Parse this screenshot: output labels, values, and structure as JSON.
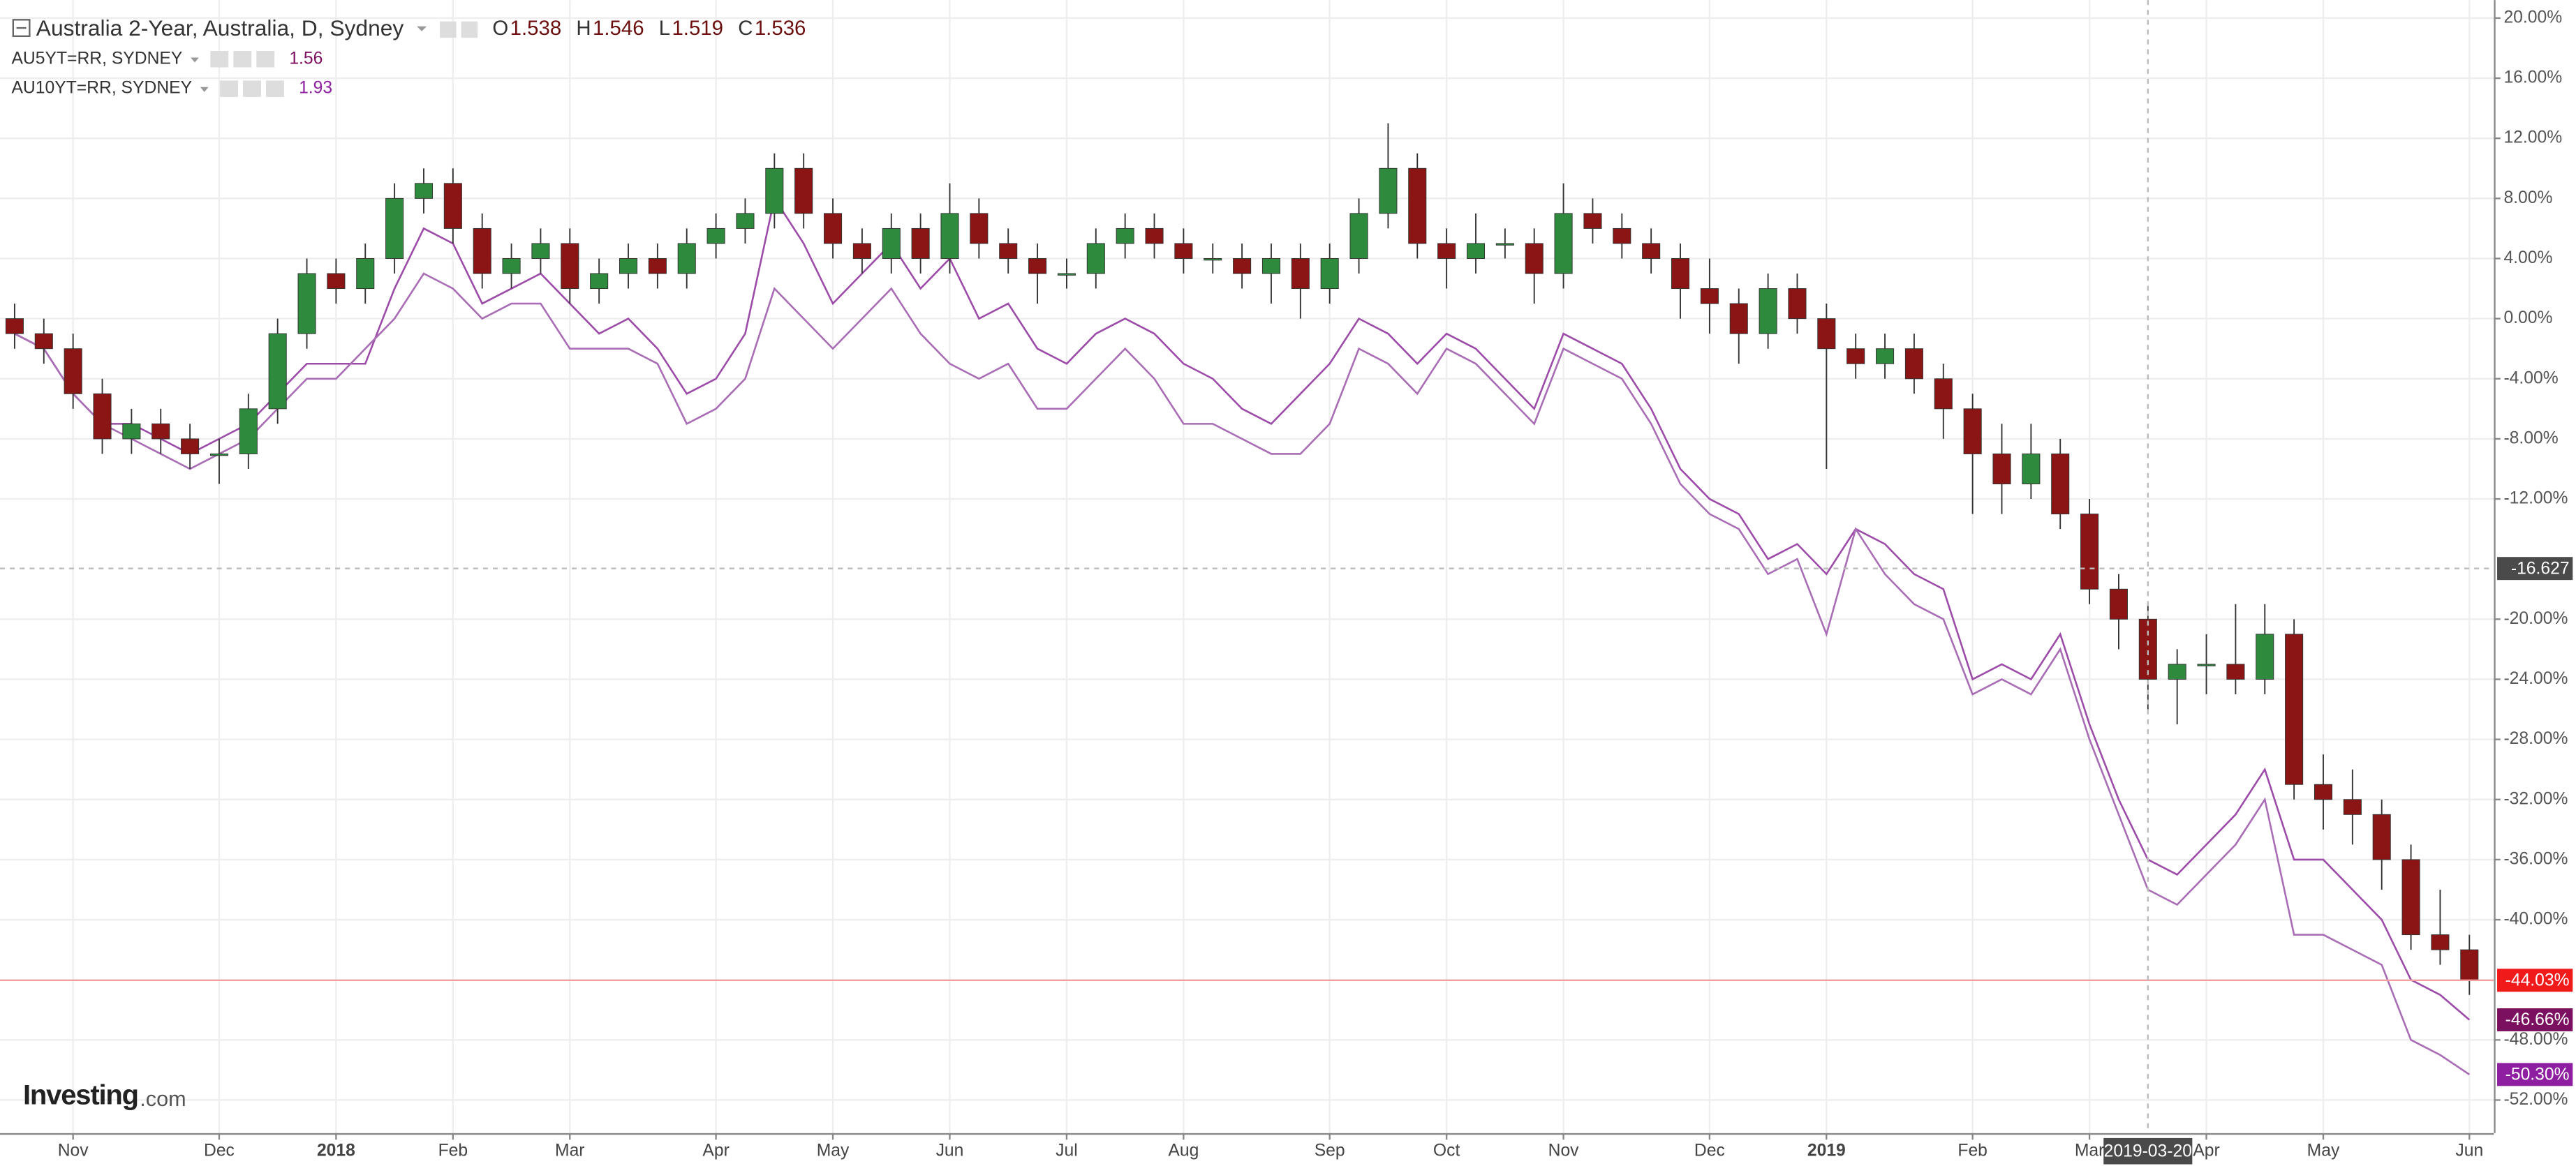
{
  "chart_data": {
    "type": "candlestick",
    "title": "Australia 2-Year, Australia, D, Sydney",
    "ohlc": {
      "labels": [
        "O",
        "H",
        "L",
        "C"
      ],
      "values": [
        1.538,
        1.546,
        1.519,
        1.536
      ]
    },
    "categories": [
      null,
      null,
      "Nov",
      null,
      null,
      null,
      null,
      "Dec",
      null,
      null,
      null,
      "2018",
      null,
      null,
      null,
      "Feb",
      null,
      null,
      null,
      "Mar",
      null,
      null,
      null,
      null,
      "Apr",
      null,
      null,
      null,
      "May",
      null,
      null,
      null,
      "Jun",
      null,
      null,
      null,
      "Jul",
      null,
      null,
      null,
      "Aug",
      null,
      null,
      null,
      null,
      "Sep",
      null,
      null,
      null,
      "Oct",
      null,
      null,
      null,
      "Nov",
      null,
      null,
      null,
      null,
      "Dec",
      null,
      null,
      null,
      "2019",
      null,
      null,
      null,
      null,
      "Feb",
      null,
      null,
      null,
      "Mar",
      null,
      "2019-03-20",
      null,
      "Apr",
      null,
      null,
      null,
      "May",
      null,
      null,
      null,
      null,
      "Jun"
    ],
    "candles": {
      "color_up": "#2e8b3e",
      "color_down": "#8b1515",
      "open": [
        0,
        -1,
        -2,
        -5,
        -8,
        -7,
        -8,
        -9,
        -9,
        -6,
        -1,
        3,
        2,
        4,
        8,
        9,
        6,
        3,
        4,
        5,
        2,
        3,
        4,
        3,
        5,
        6,
        7,
        10,
        7,
        5,
        4,
        6,
        4,
        7,
        5,
        4,
        3,
        3,
        5,
        6,
        5,
        4,
        4,
        3,
        4,
        2,
        4,
        7,
        10,
        5,
        4,
        5,
        5,
        3,
        7,
        6,
        5,
        4,
        2,
        1,
        -1,
        2,
        0,
        -2,
        -3,
        -2,
        -4,
        -6,
        -9,
        -11,
        -9,
        -13,
        -18,
        -20,
        -24,
        -23,
        -23,
        -24,
        -21,
        -31,
        -32,
        -33,
        -36,
        -41,
        -42
      ],
      "high": [
        1,
        0,
        -1,
        -4,
        -6,
        -6,
        -7,
        -8,
        -5,
        0,
        4,
        4,
        5,
        9,
        10,
        10,
        7,
        5,
        6,
        6,
        4,
        5,
        5,
        6,
        7,
        8,
        11,
        11,
        8,
        6,
        7,
        7,
        9,
        8,
        6,
        5,
        4,
        6,
        7,
        7,
        6,
        5,
        5,
        5,
        5,
        5,
        8,
        13,
        11,
        6,
        7,
        6,
        6,
        9,
        8,
        7,
        6,
        5,
        4,
        2,
        3,
        3,
        1,
        -1,
        -1,
        -1,
        -3,
        -5,
        -7,
        -7,
        -8,
        -12,
        -17,
        -19,
        -22,
        -21,
        -19,
        -19,
        -20,
        -29,
        -30,
        -32,
        -35,
        -38,
        -41
      ],
      "low": [
        -2,
        -3,
        -6,
        -9,
        -9,
        -9,
        -10,
        -11,
        -10,
        -7,
        -2,
        1,
        1,
        3,
        7,
        5,
        2,
        2,
        3,
        1,
        1,
        2,
        2,
        2,
        4,
        5,
        6,
        6,
        4,
        3,
        3,
        3,
        3,
        4,
        3,
        1,
        2,
        2,
        4,
        4,
        3,
        3,
        2,
        1,
        0,
        1,
        3,
        6,
        4,
        2,
        3,
        4,
        1,
        2,
        5,
        4,
        3,
        0,
        -1,
        -3,
        -2,
        -1,
        -10,
        -4,
        -4,
        -5,
        -8,
        -13,
        -13,
        -12,
        -14,
        -19,
        -22,
        -26,
        -27,
        -25,
        -25,
        -25,
        -32,
        -34,
        -35,
        -38,
        -42,
        -43,
        -45
      ],
      "close": [
        -1,
        -2,
        -5,
        -8,
        -7,
        -8,
        -9,
        -9,
        -6,
        -1,
        3,
        2,
        4,
        8,
        9,
        6,
        3,
        4,
        5,
        2,
        3,
        4,
        3,
        5,
        6,
        7,
        10,
        7,
        5,
        4,
        6,
        4,
        7,
        5,
        4,
        3,
        3,
        5,
        6,
        5,
        4,
        4,
        3,
        4,
        2,
        4,
        7,
        10,
        5,
        4,
        5,
        5,
        3,
        7,
        6,
        5,
        4,
        2,
        1,
        -1,
        2,
        0,
        -2,
        -3,
        -2,
        -4,
        -6,
        -9,
        -11,
        -9,
        -13,
        -18,
        -20,
        -24,
        -23,
        -23,
        -24,
        -21,
        -31,
        -32,
        -33,
        -36,
        -41,
        -42,
        -44.03
      ],
      "last_label": "-44.03%",
      "last_color": "#f01a1a"
    },
    "series": [
      {
        "name": "AU5YT=RR, SYDNEY",
        "last": 1.56,
        "color": "#9c4ca8",
        "label_color": "#7b1060",
        "last_label": "-46.66%",
        "values": [
          -1,
          -2,
          -5,
          -7,
          -7,
          -8,
          -9,
          -8,
          -7,
          -5,
          -3,
          -3,
          -3,
          2,
          6,
          5,
          1,
          2,
          3,
          1,
          -1,
          0,
          -2,
          -5,
          -4,
          -1,
          8,
          5,
          1,
          3,
          5,
          2,
          4,
          0,
          1,
          -2,
          -3,
          -1,
          0,
          -1,
          -3,
          -4,
          -6,
          -7,
          -5,
          -3,
          0,
          -1,
          -3,
          -1,
          -2,
          -4,
          -6,
          -1,
          -2,
          -3,
          -6,
          -10,
          -12,
          -13,
          -16,
          -15,
          -17,
          -14,
          -15,
          -17,
          -18,
          -24,
          -23,
          -24,
          -21,
          -27,
          -32,
          -36,
          -37,
          -35,
          -33,
          -30,
          -36,
          -36,
          -38,
          -40,
          -44,
          -45,
          -46.66
        ]
      },
      {
        "name": "AU10YT=RR, SYDNEY",
        "last": 1.93,
        "color": "#a86db4",
        "label_color": "#8e1fa0",
        "last_label": "-50.30%",
        "values": [
          -1,
          -2,
          -5,
          -7,
          -8,
          -9,
          -10,
          -9,
          -8,
          -6,
          -4,
          -4,
          -2,
          0,
          3,
          2,
          0,
          1,
          1,
          -2,
          -2,
          -2,
          -3,
          -7,
          -6,
          -4,
          2,
          0,
          -2,
          0,
          2,
          -1,
          -3,
          -4,
          -3,
          -6,
          -6,
          -4,
          -2,
          -4,
          -7,
          -7,
          -8,
          -9,
          -9,
          -7,
          -2,
          -3,
          -5,
          -2,
          -3,
          -5,
          -7,
          -2,
          -3,
          -4,
          -7,
          -11,
          -13,
          -14,
          -17,
          -16,
          -21,
          -14,
          -17,
          -19,
          -20,
          -25,
          -24,
          -25,
          -22,
          -28,
          -33,
          -38,
          -39,
          -37,
          -35,
          -32,
          -41,
          -41,
          -42,
          -43,
          -48,
          -49,
          -50.3
        ]
      }
    ],
    "crosshair": {
      "y": -16.627
    },
    "ylim": [
      -54.2,
      21.2
    ],
    "yticks": [
      {
        "value": 20,
        "label": "20.00%"
      },
      {
        "value": 16,
        "label": "16.00%"
      },
      {
        "value": 12,
        "label": "12.00%"
      },
      {
        "value": 8,
        "label": "8.00%"
      },
      {
        "value": 4,
        "label": "4.00%"
      },
      {
        "value": 0,
        "label": "0.00%"
      },
      {
        "value": -4,
        "label": "-4.00%"
      },
      {
        "value": -8,
        "label": "-8.00%"
      },
      {
        "value": -12,
        "label": "-12.00%"
      },
      {
        "value": -20,
        "label": "-20.00%"
      },
      {
        "value": -24,
        "label": "-24.00%"
      },
      {
        "value": -28,
        "label": "-28.00%"
      },
      {
        "value": -32,
        "label": "-32.00%"
      },
      {
        "value": -36,
        "label": "-36.00%"
      },
      {
        "value": -40,
        "label": "-40.00%"
      },
      {
        "value": -48,
        "label": "-48.00%"
      },
      {
        "value": -52,
        "label": "-52.00%"
      }
    ],
    "grid": true,
    "watermark": {
      "brand": "Investing",
      "suffix": ".com"
    }
  }
}
